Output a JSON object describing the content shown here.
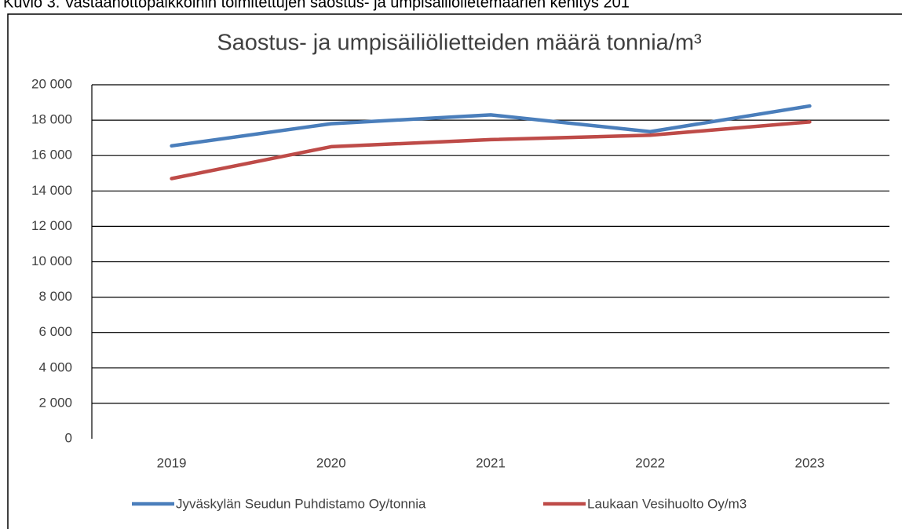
{
  "caption": "Kuvio 3. Vastaanottopaikkoihin toimitettujen saostus- ja umpisäiliölietemäärien kehitys 201",
  "chart_data": {
    "type": "line",
    "title": "Saostus- ja umpisäiliölietteiden määrä tonnia/m³",
    "categories": [
      "2019",
      "2020",
      "2021",
      "2022",
      "2023"
    ],
    "series": [
      {
        "name": "Jyväskylän Seudun Puhdistamo Oy/tonnia",
        "color": "#4a7ebb",
        "values": [
          16550,
          17800,
          18300,
          17350,
          18800
        ]
      },
      {
        "name": "Laukaan Vesihuolto Oy/m3",
        "color": "#be4b48",
        "values": [
          14700,
          16500,
          16900,
          17150,
          17900
        ]
      }
    ],
    "ylim": [
      0,
      20000
    ],
    "yticks": [
      0,
      {
        "value": 2000,
        "label": "2 000"
      },
      {
        "value": 4000,
        "label": "4 000"
      },
      {
        "value": 6000,
        "label": "6 000"
      },
      {
        "value": 8000,
        "label": "8 000"
      },
      {
        "value": 10000,
        "label": "10 000"
      },
      {
        "value": 12000,
        "label": "12 000"
      },
      {
        "value": 14000,
        "label": "14 000"
      },
      {
        "value": 16000,
        "label": "16 000"
      },
      {
        "value": 18000,
        "label": "18 000"
      },
      {
        "value": 20000,
        "label": "20 000"
      }
    ],
    "grid": true,
    "legend": "bottom"
  }
}
